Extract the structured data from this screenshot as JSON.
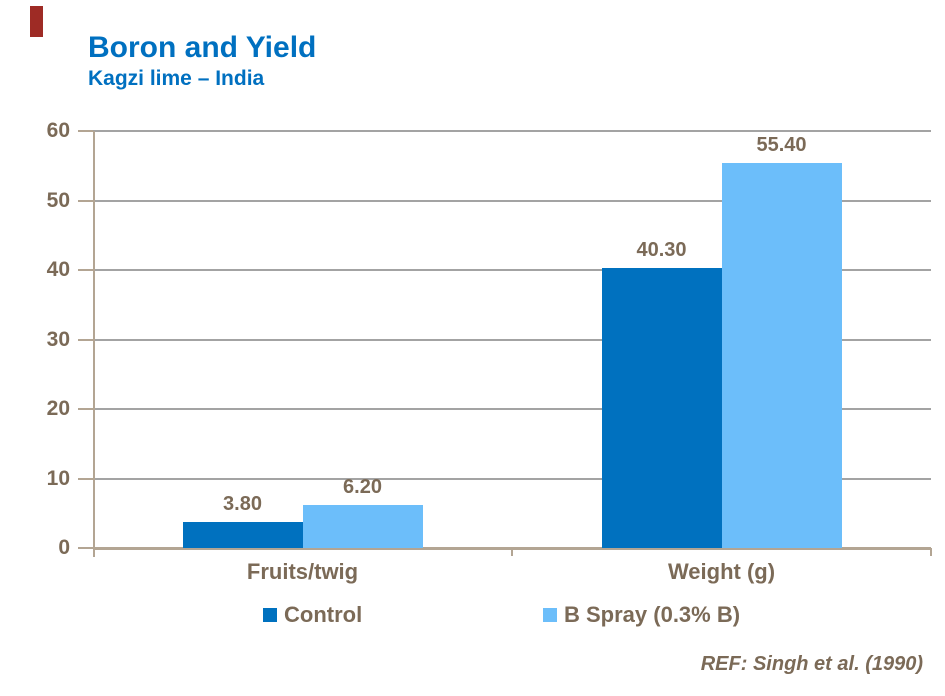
{
  "header": {
    "title": "Boron and Yield",
    "subtitle": "Kagzi lime – India"
  },
  "footer": {
    "ref": "REF: Singh et al. (1990)"
  },
  "accent": {
    "color": "#9E2B25"
  },
  "colors": {
    "title_blue": "#0070C0",
    "text_brown": "#7B6A57",
    "grid_gray": "#A3A3A3",
    "axis_tan": "#B3A593"
  },
  "chart_data": {
    "type": "bar",
    "title": "Boron and Yield",
    "subtitle": "Kagzi lime – India",
    "categories": [
      "Fruits/twig",
      "Weight (g)"
    ],
    "series": [
      {
        "name": "Control",
        "color": "#0071BF",
        "values": [
          3.8,
          40.3
        ],
        "labels": [
          "3.80",
          "40.30"
        ]
      },
      {
        "name": "B Spray (0.3% B)",
        "color": "#6CBEFA",
        "values": [
          6.2,
          55.4
        ],
        "labels": [
          "6.20",
          "55.40"
        ]
      }
    ],
    "y_axis": {
      "min": 0,
      "max": 60,
      "step": 10,
      "tick_labels": [
        "0",
        "10",
        "20",
        "30",
        "40",
        "50",
        "60"
      ]
    },
    "xlabel": "",
    "ylabel": "",
    "grid": true,
    "legend_position": "bottom"
  }
}
